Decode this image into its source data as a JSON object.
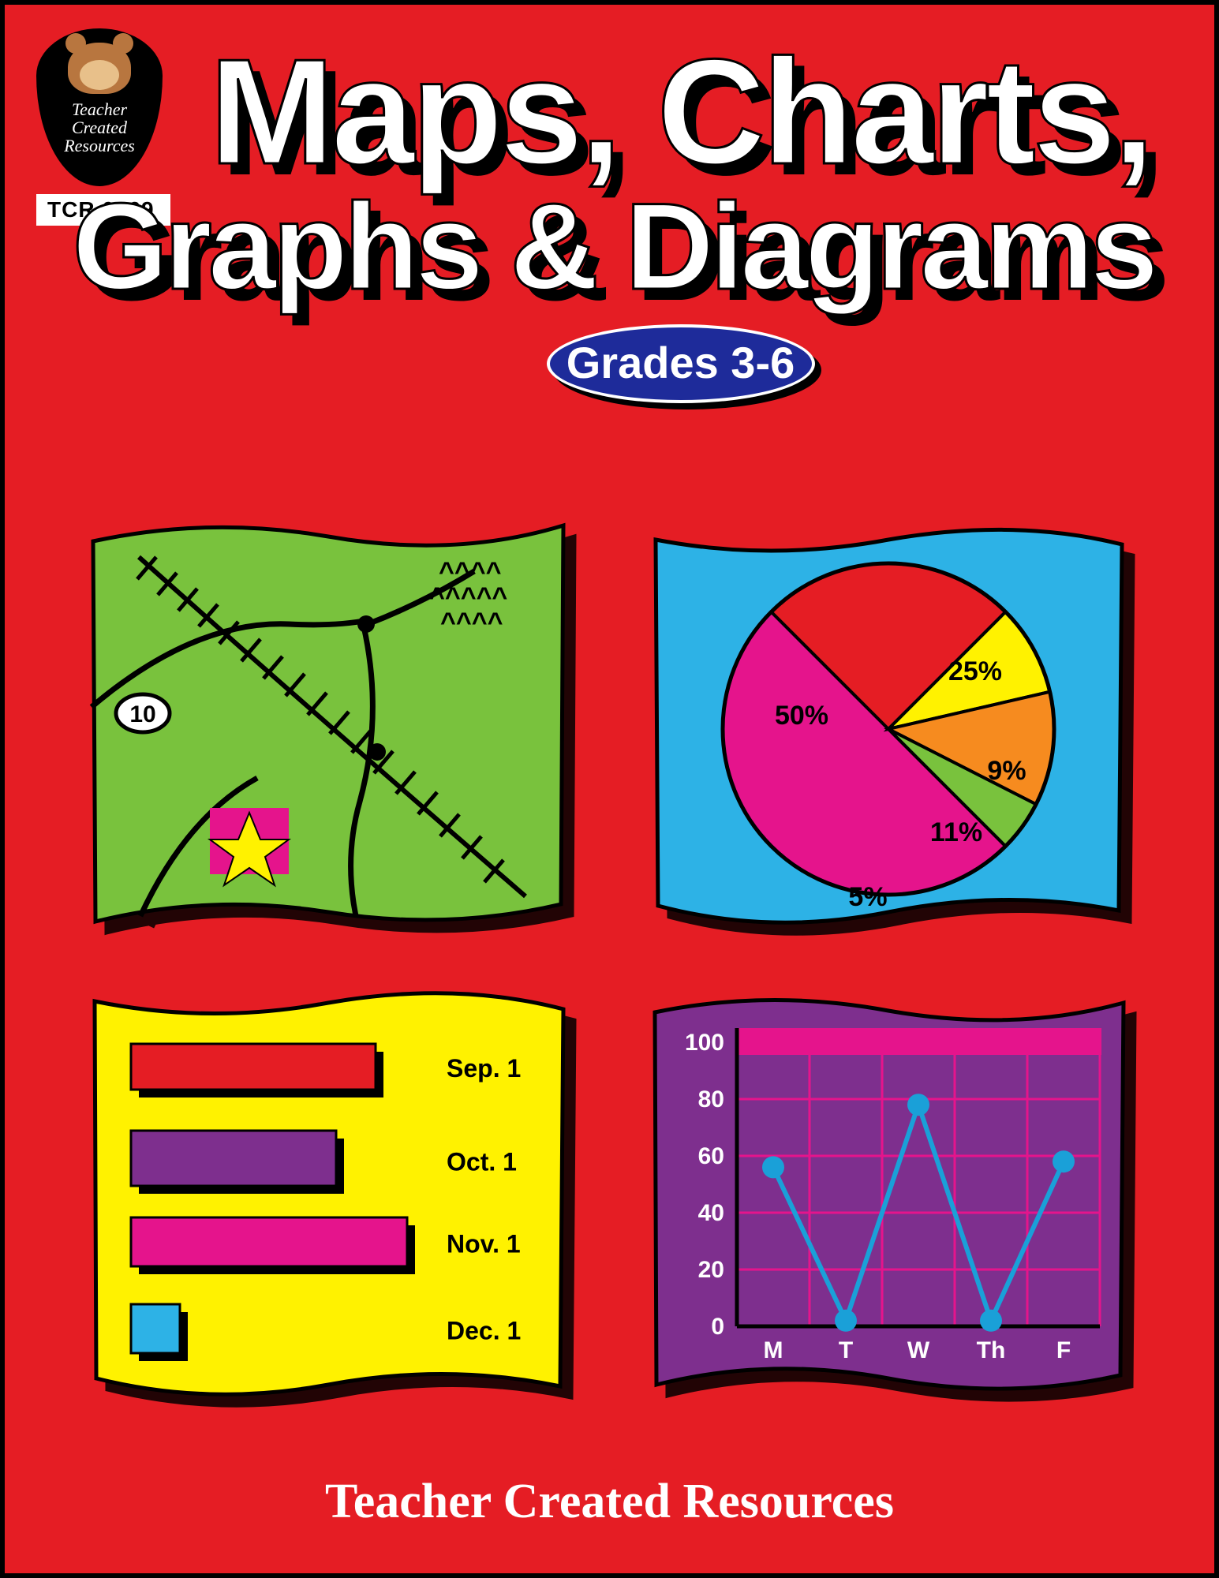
{
  "background_color": "#e51d24",
  "logo": {
    "brand_line1": "Teacher",
    "brand_line2": "Created",
    "brand_line3": "Resources",
    "product_code": "TCR 0169"
  },
  "title": {
    "line1": "Maps, Charts,",
    "line2": "Graphs & Diagrams",
    "text_color": "#ffffff",
    "outline_color": "#000000",
    "shadow_color": "#000000"
  },
  "grades_badge": {
    "text": "Grades 3-6",
    "fill": "#1e2b9a",
    "text_color": "#ffffff",
    "border_color": "#ffffff"
  },
  "panels": {
    "map": {
      "type": "infographic",
      "panel_fill": "#79c23d",
      "route_color": "#000000",
      "railroad_color": "#000000",
      "marker_square_fill": "#e5148c",
      "marker_star_fill": "#fff200",
      "route_shield_text": "10",
      "tree_symbol_color": "#000000"
    },
    "pie": {
      "type": "pie",
      "panel_fill": "#2db2e6",
      "circle_outline": "#000000",
      "slices": [
        {
          "label": "50%",
          "value": 50,
          "color": "#e5148c",
          "start_deg": 135,
          "end_deg": 315
        },
        {
          "label": "25%",
          "value": 25,
          "color": "#e51d24",
          "start_deg": 315,
          "end_deg": 45
        },
        {
          "label": "9%",
          "value": 9,
          "color": "#fff200",
          "start_deg": 45,
          "end_deg": 77
        },
        {
          "label": "11%",
          "value": 11,
          "color": "#f68b1f",
          "start_deg": 77,
          "end_deg": 117
        },
        {
          "label": "5%",
          "value": 5,
          "color": "#79c23d",
          "start_deg": 117,
          "end_deg": 135
        }
      ],
      "label_fontsize": 34,
      "label_color": "#000000"
    },
    "bar": {
      "type": "bar",
      "panel_fill": "#fff200",
      "label_color": "#000000",
      "label_fontsize": 32,
      "bars": [
        {
          "label": "Sep. 1",
          "length": 310,
          "height": 58,
          "color": "#e51d24"
        },
        {
          "label": "Oct. 1",
          "length": 260,
          "height": 70,
          "color": "#7e2f8e"
        },
        {
          "label": "Nov. 1",
          "length": 350,
          "height": 62,
          "color": "#e5148c"
        },
        {
          "label": "Dec. 1",
          "length": 62,
          "height": 62,
          "color": "#2db2e6"
        }
      ],
      "bar_shadow_color": "#000000"
    },
    "line": {
      "type": "line",
      "panel_fill": "#7e2f8e",
      "header_band_color": "#e5148c",
      "grid_color": "#e5148c",
      "axis_color": "#000000",
      "tick_label_color": "#ffffff",
      "tick_fontsize": 30,
      "y_ticks": [
        0,
        20,
        40,
        60,
        80,
        100
      ],
      "x_labels": [
        "M",
        "T",
        "W",
        "Th",
        "F"
      ],
      "series": {
        "color": "#1aa0d8",
        "marker_radius": 14,
        "line_width": 6,
        "points_y": [
          56,
          2,
          78,
          2,
          58
        ]
      }
    }
  },
  "publisher": "Teacher Created Resources"
}
